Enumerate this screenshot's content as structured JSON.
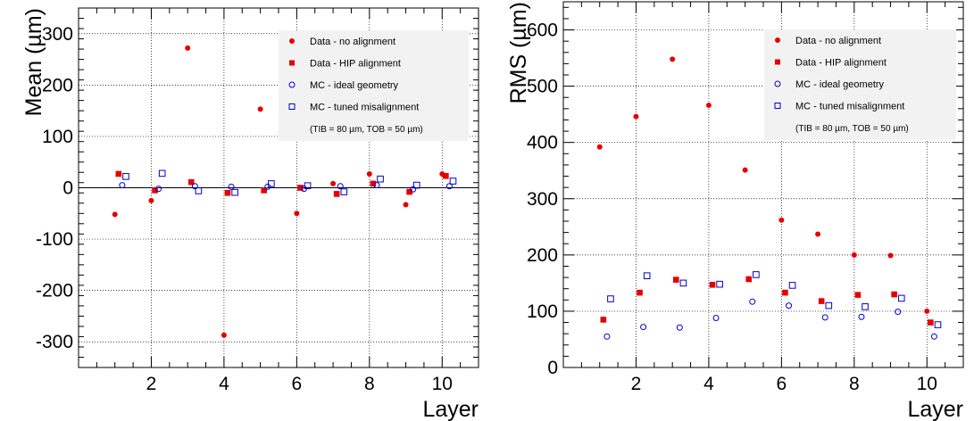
{
  "chart_data": [
    {
      "type": "scatter",
      "ylabel": "Mean (µm)",
      "xlabel": "Layer",
      "xlim": [
        0,
        11
      ],
      "ylim": [
        -350,
        350
      ],
      "xticks": [
        2,
        4,
        6,
        8,
        10
      ],
      "yticks": [
        -300,
        -200,
        -100,
        0,
        100,
        200,
        300
      ],
      "ytick_labels": [
        "-300",
        "-200",
        "-100",
        "0",
        "100",
        "200",
        "300"
      ],
      "grid": true,
      "zero_line": true,
      "legend_position": "top-right",
      "legend_note": "(TIB = 80 µm, TOB = 50 µm)",
      "series": [
        {
          "name": "Data - no alignment",
          "marker": "filled-circle",
          "color": "#e60000",
          "points": [
            [
              1.0,
              -52
            ],
            [
              2.0,
              -25
            ],
            [
              3.0,
              272
            ],
            [
              4.0,
              -287
            ],
            [
              5.0,
              153
            ],
            [
              6.0,
              -50
            ],
            [
              7.0,
              8
            ],
            [
              8.0,
              27
            ],
            [
              9.0,
              -33
            ],
            [
              10.0,
              27
            ]
          ]
        },
        {
          "name": "Data - HIP alignment",
          "marker": "filled-square",
          "color": "#e60000",
          "points": [
            [
              1.1,
              27
            ],
            [
              2.1,
              -5
            ],
            [
              3.1,
              11
            ],
            [
              4.1,
              -10
            ],
            [
              5.1,
              -5
            ],
            [
              6.1,
              0
            ],
            [
              7.1,
              -12
            ],
            [
              8.1,
              8
            ],
            [
              9.1,
              -8
            ],
            [
              10.1,
              23
            ]
          ]
        },
        {
          "name": "MC - ideal geometry",
          "marker": "open-circle",
          "color": "#0000cc",
          "points": [
            [
              1.2,
              5
            ],
            [
              2.2,
              -2
            ],
            [
              3.2,
              3
            ],
            [
              4.2,
              2
            ],
            [
              5.2,
              2
            ],
            [
              6.2,
              -2
            ],
            [
              7.2,
              3
            ],
            [
              8.2,
              5
            ],
            [
              9.2,
              -3
            ],
            [
              10.2,
              3
            ]
          ]
        },
        {
          "name": "MC - tuned misalignment",
          "marker": "open-square",
          "color": "#0000cc",
          "points": [
            [
              1.3,
              22
            ],
            [
              2.3,
              28
            ],
            [
              3.3,
              -6
            ],
            [
              4.3,
              -9
            ],
            [
              5.3,
              8
            ],
            [
              6.3,
              4
            ],
            [
              7.3,
              -8
            ],
            [
              8.3,
              17
            ],
            [
              9.3,
              5
            ],
            [
              10.3,
              13
            ]
          ]
        }
      ]
    },
    {
      "type": "scatter",
      "ylabel": "RMS (µm)",
      "xlabel": "Layer",
      "xlim": [
        0,
        11
      ],
      "ylim": [
        0,
        650
      ],
      "xticks": [
        2,
        4,
        6,
        8,
        10
      ],
      "yticks": [
        0,
        100,
        200,
        300,
        400,
        500,
        600
      ],
      "ytick_labels": [
        "0",
        "100",
        "200",
        "300",
        "400",
        "500",
        "600"
      ],
      "grid": true,
      "zero_line": false,
      "legend_position": "top-right",
      "legend_note": "(TIB = 80 µm, TOB = 50 µm)",
      "series": [
        {
          "name": "Data - no alignment",
          "marker": "filled-circle",
          "color": "#e60000",
          "points": [
            [
              1.0,
              392
            ],
            [
              2.0,
              446
            ],
            [
              3.0,
              548
            ],
            [
              4.0,
              466
            ],
            [
              5.0,
              351
            ],
            [
              6.0,
              262
            ],
            [
              7.0,
              237
            ],
            [
              8.0,
              200
            ],
            [
              9.0,
              199
            ],
            [
              10.0,
              100
            ]
          ]
        },
        {
          "name": "Data - HIP alignment",
          "marker": "filled-square",
          "color": "#e60000",
          "points": [
            [
              1.1,
              85
            ],
            [
              2.1,
              133
            ],
            [
              3.1,
              156
            ],
            [
              4.1,
              147
            ],
            [
              5.1,
              157
            ],
            [
              6.1,
              133
            ],
            [
              7.1,
              118
            ],
            [
              8.1,
              129
            ],
            [
              9.1,
              130
            ],
            [
              10.1,
              80
            ]
          ]
        },
        {
          "name": "MC - ideal geometry",
          "marker": "open-circle",
          "color": "#0000cc",
          "points": [
            [
              1.2,
              55
            ],
            [
              2.2,
              72
            ],
            [
              3.2,
              71
            ],
            [
              4.2,
              88
            ],
            [
              5.2,
              117
            ],
            [
              6.2,
              110
            ],
            [
              7.2,
              89
            ],
            [
              8.2,
              90
            ],
            [
              9.2,
              99
            ],
            [
              10.2,
              55
            ]
          ]
        },
        {
          "name": "MC - tuned misalignment",
          "marker": "open-square",
          "color": "#0000cc",
          "points": [
            [
              1.3,
              122
            ],
            [
              2.3,
              163
            ],
            [
              3.3,
              150
            ],
            [
              4.3,
              148
            ],
            [
              5.3,
              165
            ],
            [
              6.3,
              146
            ],
            [
              7.3,
              110
            ],
            [
              8.3,
              108
            ],
            [
              9.3,
              123
            ],
            [
              10.3,
              76
            ]
          ]
        }
      ]
    }
  ]
}
